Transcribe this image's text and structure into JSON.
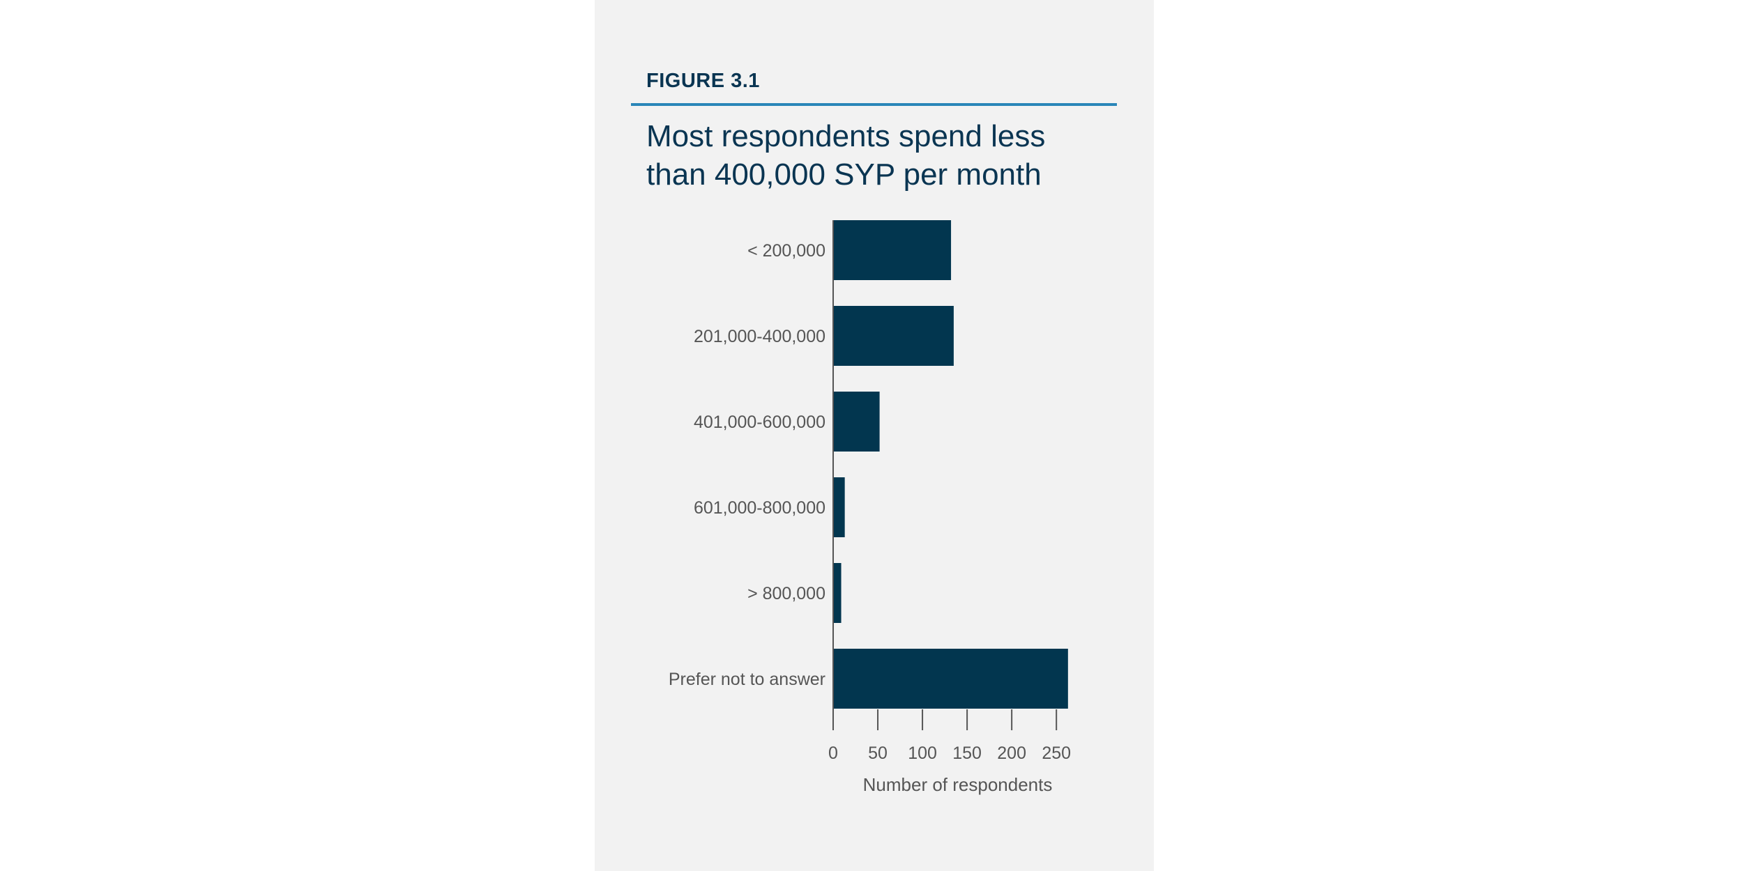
{
  "figure": {
    "label": "FIGURE 3.1",
    "title": "Most respondents spend less than 400,000 SYP per month"
  },
  "chart_data": {
    "type": "bar",
    "orientation": "horizontal",
    "categories": [
      "< 200,000",
      "201,000-400,000",
      "401,000-600,000",
      "601,000-800,000",
      "> 800,000",
      "Prefer not to answer"
    ],
    "values": [
      132,
      135,
      52,
      13,
      9,
      263
    ],
    "xlabel": "Number of respondents",
    "ylabel": "",
    "xlim": [
      0,
      260
    ],
    "xticks": [
      "0",
      "50",
      "100",
      "150",
      "200",
      "250"
    ],
    "grid": false,
    "bar_color": "#02364f"
  },
  "colors": {
    "panel": "#f2f2f2",
    "title": "#0a3552",
    "rule": "#2a86b8",
    "text": "#555555"
  }
}
